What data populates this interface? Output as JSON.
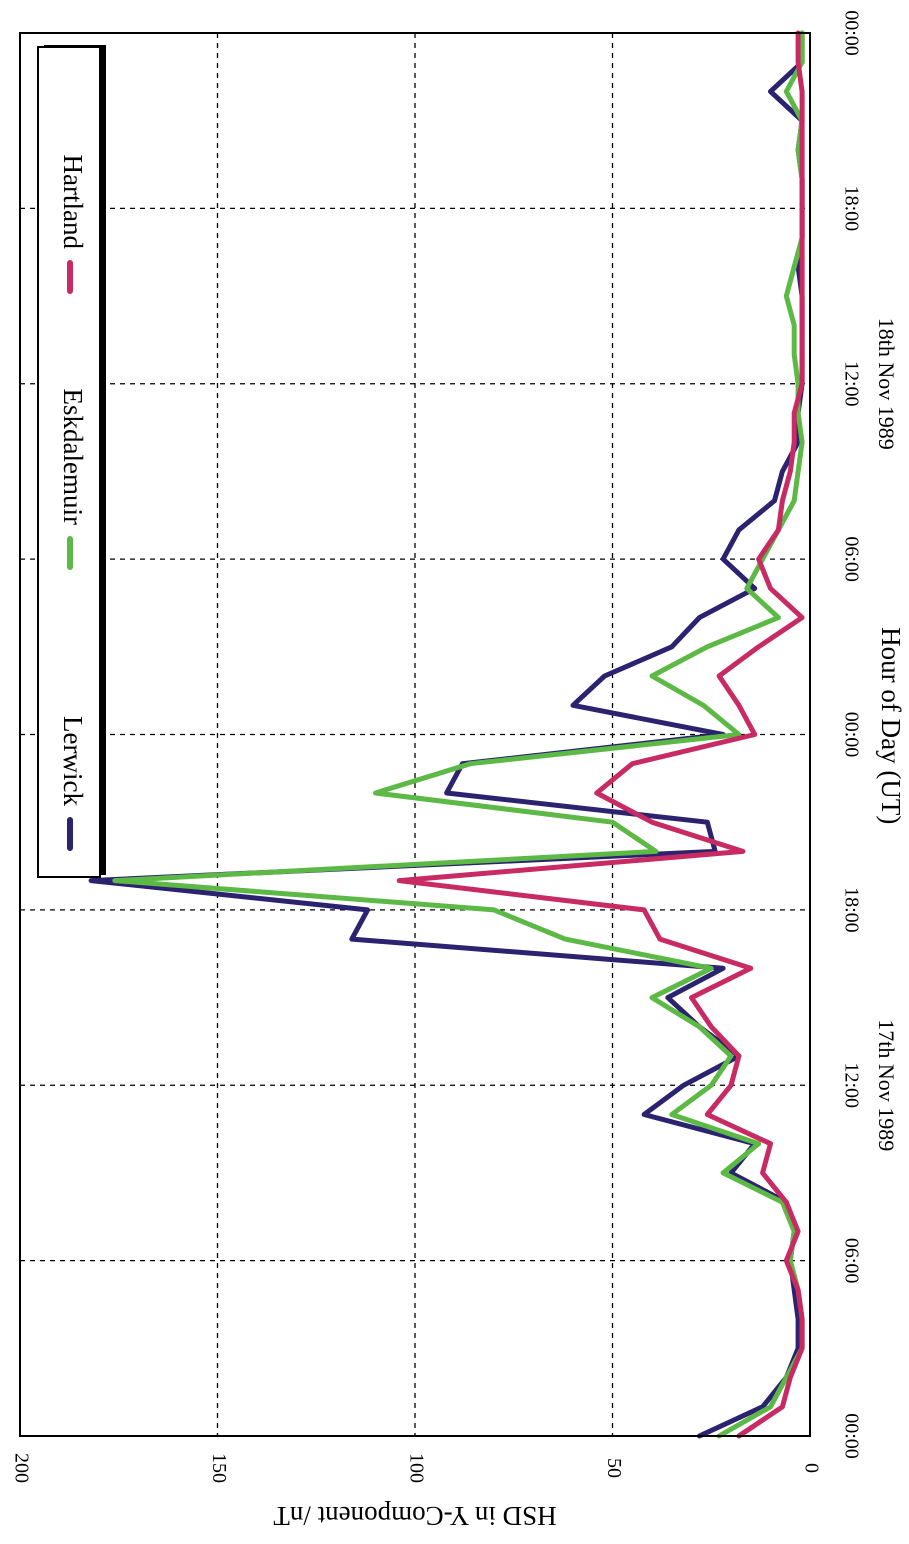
{
  "chart_data": {
    "type": "line",
    "orientation": "rotated-90-clockwise",
    "xlabel": "Hour of Day (UT)",
    "ylabel": "HSD in Y-Component /nT",
    "xlim": [
      0,
      48
    ],
    "ylim": [
      0,
      200
    ],
    "grid": true,
    "legend_position": "top",
    "x_ticks": [
      {
        "x": 0,
        "label": "00:00"
      },
      {
        "x": 6,
        "label": "06:00"
      },
      {
        "x": 12,
        "label": "12:00"
      },
      {
        "x": 18,
        "label": "18:00"
      },
      {
        "x": 24,
        "label": "00:00"
      },
      {
        "x": 30,
        "label": "06:00"
      },
      {
        "x": 36,
        "label": "12:00"
      },
      {
        "x": 42,
        "label": "18:00"
      },
      {
        "x": 48,
        "label": "00:00"
      }
    ],
    "y_ticks": [
      0,
      50,
      100,
      150,
      200
    ],
    "date_labels": [
      {
        "x": 12,
        "label": "17th Nov 1989"
      },
      {
        "x": 36,
        "label": "18th Nov 1989"
      }
    ],
    "x": [
      0,
      1,
      2,
      3,
      4,
      5,
      6,
      7,
      8,
      9,
      10,
      11,
      12,
      13,
      14,
      15,
      16,
      17,
      18,
      19,
      20,
      21,
      22,
      23,
      24,
      25,
      26,
      27,
      28,
      29,
      30,
      31,
      32,
      33,
      34,
      35,
      36,
      37,
      38,
      39,
      40,
      41,
      42,
      43,
      44,
      45,
      46,
      47,
      48
    ],
    "series": [
      {
        "name": "Lerwick",
        "color": "#2b2270",
        "values": [
          28,
          12,
          6,
          3,
          3,
          4,
          5,
          4,
          6,
          20,
          14,
          42,
          32,
          18,
          28,
          36,
          22,
          116,
          112,
          182,
          24,
          26,
          92,
          88,
          22,
          60,
          52,
          35,
          28,
          14,
          22,
          18,
          9,
          7,
          3,
          3,
          2,
          2,
          2,
          2,
          3,
          2,
          2,
          2,
          3,
          2,
          10,
          2,
          2
        ]
      },
      {
        "name": "Eskdalemuir",
        "color": "#5cb945",
        "values": [
          23,
          10,
          6,
          2,
          2,
          3,
          5,
          4,
          7,
          22,
          13,
          35,
          25,
          20,
          28,
          40,
          25,
          62,
          80,
          176,
          39,
          50,
          110,
          86,
          18,
          27,
          40,
          26,
          8,
          16,
          12,
          8,
          4,
          3,
          2,
          3,
          3,
          4,
          4,
          6,
          4,
          2,
          2,
          2,
          3,
          2,
          6,
          2,
          2
        ]
      },
      {
        "name": "Hartland",
        "color": "#c82b63",
        "values": [
          18,
          7,
          5,
          2,
          2,
          3,
          6,
          3,
          6,
          12,
          10,
          26,
          20,
          18,
          25,
          30,
          15,
          38,
          42,
          104,
          17,
          40,
          54,
          45,
          14,
          18,
          23,
          13,
          2,
          10,
          13,
          8,
          7,
          5,
          4,
          4,
          2,
          2,
          2,
          2,
          2,
          2,
          2,
          2,
          2,
          2,
          2,
          3,
          3
        ]
      }
    ]
  }
}
